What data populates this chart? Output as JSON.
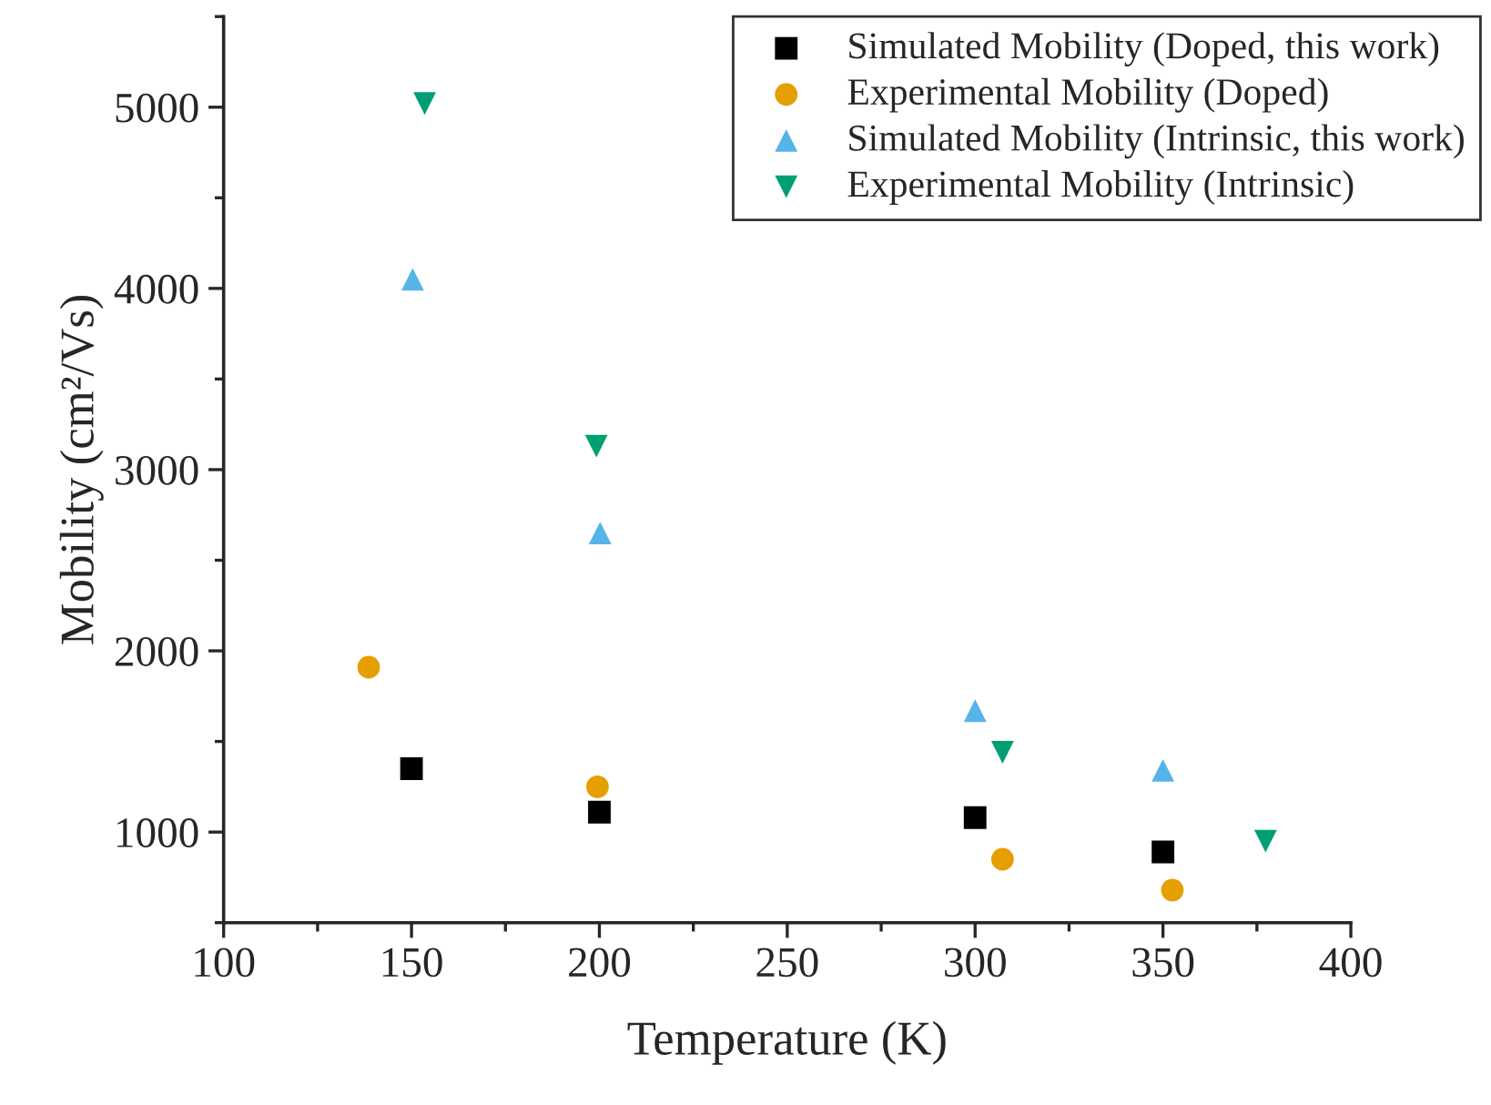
{
  "chart_data": {
    "type": "scatter",
    "xlabel": "Temperature (K)",
    "ylabel": "Mobility (cm²/Vs)",
    "xlim": [
      100,
      400
    ],
    "xticks": [
      100,
      150,
      200,
      250,
      300,
      350,
      400
    ],
    "ylim": [
      500,
      5500
    ],
    "yticks": [
      1000,
      2000,
      3000,
      4000,
      5000
    ],
    "grid": false,
    "legend": "top right",
    "series": [
      {
        "name": "Simulated Mobility (Doped, this work)",
        "color": "#000000",
        "marker": "square",
        "x": [
          150,
          200,
          300,
          350
        ],
        "values": [
          1350,
          1110,
          1080,
          890
        ]
      },
      {
        "name": "Experimental Mobility (Doped)",
        "color": "#e69f00",
        "marker": "circle",
        "x": [
          138.6,
          199.5,
          307.3,
          352.5
        ],
        "values": [
          1910,
          1250,
          850,
          680
        ]
      },
      {
        "name": "Simulated Mobility (Intrinsic, this work)",
        "color": "#56b4e9",
        "marker": "triangle",
        "x": [
          150.3,
          200.2,
          300,
          350
        ],
        "values": [
          4050,
          2650,
          1670,
          1340
        ]
      },
      {
        "name": "Experimental Mobility (Intrinsic)",
        "color": "#009e73",
        "marker": "triangle_down",
        "x": [
          153.5,
          199.2,
          307.3,
          377.3
        ],
        "values": [
          5020,
          3130,
          1440,
          950
        ]
      }
    ]
  }
}
